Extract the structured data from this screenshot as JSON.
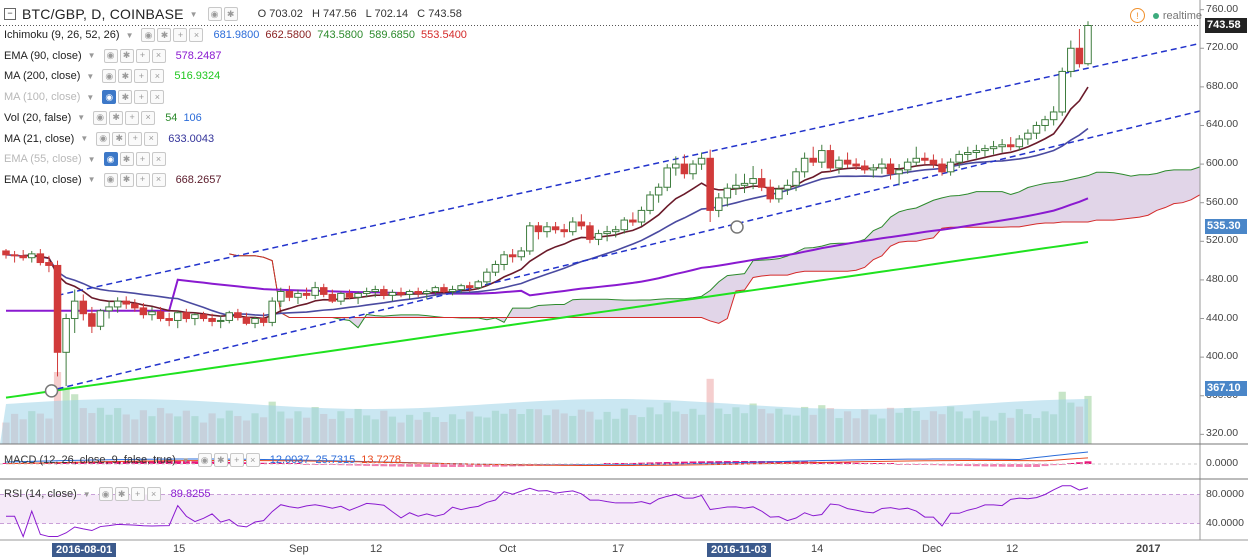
{
  "header": {
    "symbol": "BTC/GBP, D, COINBASE",
    "open_label": "O",
    "open": "703.02",
    "high_label": "H",
    "high": "747.56",
    "low_label": "L",
    "low": "702.14",
    "close_label": "C",
    "close": "743.58",
    "realtime": "realtime",
    "warn_glyph": "!"
  },
  "indicators": [
    {
      "name": "Ichimoku (9, 26, 52, 26)",
      "muted": false,
      "eye": false,
      "values": [
        {
          "v": "681.9800",
          "color": "#2b6cd9"
        },
        {
          "v": "662.5800",
          "color": "#8a2222"
        },
        {
          "v": "743.5800",
          "color": "#2c8a2c"
        },
        {
          "v": "589.6850",
          "color": "#2c8a2c"
        },
        {
          "v": "553.5400",
          "color": "#d42a2a"
        }
      ]
    },
    {
      "name": "EMA (90, close)",
      "muted": false,
      "eye": false,
      "values": [
        {
          "v": "578.2487",
          "color": "#8a1ad0"
        }
      ]
    },
    {
      "name": "MA (200, close)",
      "muted": false,
      "eye": false,
      "values": [
        {
          "v": "516.9324",
          "color": "#1fc61f"
        }
      ]
    },
    {
      "name": "MA (100, close)",
      "muted": true,
      "eye": true,
      "values": []
    },
    {
      "name": "Vol (20, false)",
      "muted": false,
      "eye": false,
      "values": [
        {
          "v": "54",
          "color": "#2c8a2c"
        },
        {
          "v": "106",
          "color": "#2b6cd9"
        }
      ]
    },
    {
      "name": "MA (21, close)",
      "muted": false,
      "eye": false,
      "values": [
        {
          "v": "633.0043",
          "color": "#33339a"
        }
      ]
    },
    {
      "name": "EMA (55, close)",
      "muted": true,
      "eye": true,
      "values": []
    },
    {
      "name": "EMA (10, close)",
      "muted": false,
      "eye": false,
      "values": [
        {
          "v": "668.2657",
          "color": "#5a1a2a"
        }
      ]
    }
  ],
  "panes": {
    "macd": {
      "name": "MACD (12, 26, close, 9, false, true)",
      "values": [
        {
          "v": "12.0037",
          "color": "#2b6cd9"
        },
        {
          "v": "25.7315",
          "color": "#2b6cd9"
        },
        {
          "v": "13.7278",
          "color": "#e8491d"
        }
      ]
    },
    "rsi": {
      "name": "RSI (14, close)",
      "values": [
        {
          "v": "89.8255",
          "color": "#8a1ad0"
        }
      ]
    }
  },
  "price_axis": {
    "ticks": [
      "760.00",
      "720.00",
      "680.00",
      "640.00",
      "600.00",
      "560.00",
      "520.00",
      "480.00",
      "440.00",
      "400.00",
      "360.00",
      "320.00"
    ],
    "labels": [
      {
        "text": "743.58",
        "value": 743.58,
        "color": "#222222"
      },
      {
        "text": "535.30",
        "value": 535.3,
        "color": "#4a86c8"
      },
      {
        "text": "367.10",
        "value": 367.1,
        "color": "#4a86c8"
      }
    ]
  },
  "macd_axis": {
    "ticks": [
      "0.0000"
    ]
  },
  "rsi_axis": {
    "ticks": [
      "80.0000",
      "40.0000"
    ]
  },
  "time_axis": [
    {
      "text": "2016-08-01",
      "style": "hi"
    },
    {
      "text": "15",
      "style": ""
    },
    {
      "text": "Sep",
      "style": ""
    },
    {
      "text": "12",
      "style": ""
    },
    {
      "text": "Oct",
      "style": ""
    },
    {
      "text": "17",
      "style": ""
    },
    {
      "text": "2016-11-03",
      "style": "hi"
    },
    {
      "text": "14",
      "style": ""
    },
    {
      "text": "Dec",
      "style": ""
    },
    {
      "text": "12",
      "style": ""
    },
    {
      "text": "2017",
      "style": "bold"
    }
  ],
  "colors": {
    "up": "#3e7c3e",
    "down": "#d13a3a",
    "ma200": "#1fe21f",
    "ema90": "#8a1ad0",
    "ma21": "#4a4aa0",
    "ema10": "#6a1a2a",
    "trend": "#2233cc",
    "cloud": "#c9b2d6",
    "senkou_a": "#2c8a2c",
    "senkou_b": "#d42a2a",
    "volume": "#9fd3e8",
    "rsi": "#8a1ad0"
  },
  "chart_data": {
    "type": "candlestick",
    "start": "2016-07-27",
    "y_range": [
      310,
      770
    ],
    "x_ticks": [
      "2016-08-01",
      "15",
      "Sep",
      "12",
      "Oct",
      "17",
      "2016-11-03",
      "14",
      "Dec",
      "12",
      "2017"
    ],
    "candles": [
      [
        510,
        512,
        502,
        506
      ],
      [
        506,
        510,
        498,
        505
      ],
      [
        505,
        511,
        500,
        503
      ],
      [
        503,
        510,
        498,
        507
      ],
      [
        507,
        512,
        495,
        498
      ],
      [
        498,
        505,
        488,
        495
      ],
      [
        495,
        500,
        380,
        405
      ],
      [
        405,
        445,
        370,
        440
      ],
      [
        440,
        470,
        425,
        458
      ],
      [
        458,
        465,
        438,
        445
      ],
      [
        445,
        452,
        425,
        432
      ],
      [
        432,
        450,
        428,
        448
      ],
      [
        448,
        458,
        440,
        452
      ],
      [
        452,
        462,
        446,
        458
      ],
      [
        458,
        463,
        450,
        455
      ],
      [
        455,
        460,
        447,
        451
      ],
      [
        451,
        456,
        440,
        444
      ],
      [
        444,
        452,
        438,
        447
      ],
      [
        447,
        452,
        437,
        440
      ],
      [
        440,
        446,
        432,
        438
      ],
      [
        438,
        448,
        430,
        446
      ],
      [
        446,
        450,
        436,
        440
      ],
      [
        440,
        446,
        433,
        444
      ],
      [
        444,
        447,
        437,
        440
      ],
      [
        440,
        445,
        432,
        437
      ],
      [
        437,
        443,
        430,
        438
      ],
      [
        438,
        448,
        435,
        446
      ],
      [
        446,
        450,
        438,
        441
      ],
      [
        441,
        446,
        433,
        435
      ],
      [
        435,
        442,
        430,
        440
      ],
      [
        440,
        446,
        432,
        436
      ],
      [
        436,
        462,
        432,
        458
      ],
      [
        458,
        472,
        452,
        468
      ],
      [
        468,
        474,
        458,
        462
      ],
      [
        462,
        470,
        455,
        466
      ],
      [
        466,
        472,
        460,
        464
      ],
      [
        464,
        478,
        460,
        472
      ],
      [
        472,
        476,
        462,
        465
      ],
      [
        465,
        470,
        456,
        458
      ],
      [
        458,
        468,
        454,
        466
      ],
      [
        466,
        470,
        460,
        462
      ],
      [
        462,
        468,
        455,
        466
      ],
      [
        466,
        472,
        462,
        468
      ],
      [
        468,
        474,
        462,
        470
      ],
      [
        470,
        474,
        460,
        464
      ],
      [
        464,
        470,
        458,
        467
      ],
      [
        467,
        472,
        462,
        465
      ],
      [
        465,
        470,
        460,
        468
      ],
      [
        468,
        472,
        462,
        466
      ],
      [
        466,
        470,
        460,
        468
      ],
      [
        468,
        474,
        464,
        472
      ],
      [
        472,
        476,
        466,
        468
      ],
      [
        468,
        474,
        464,
        470
      ],
      [
        470,
        476,
        466,
        474
      ],
      [
        474,
        478,
        468,
        472
      ],
      [
        472,
        480,
        470,
        478
      ],
      [
        478,
        492,
        474,
        488
      ],
      [
        488,
        500,
        484,
        496
      ],
      [
        496,
        510,
        490,
        506
      ],
      [
        506,
        512,
        498,
        504
      ],
      [
        504,
        514,
        500,
        510
      ],
      [
        510,
        540,
        506,
        536
      ],
      [
        536,
        540,
        522,
        530
      ],
      [
        530,
        540,
        524,
        535
      ],
      [
        535,
        540,
        528,
        532
      ],
      [
        532,
        538,
        524,
        530
      ],
      [
        530,
        545,
        526,
        540
      ],
      [
        540,
        548,
        532,
        536
      ],
      [
        536,
        540,
        518,
        522
      ],
      [
        522,
        532,
        516,
        528
      ],
      [
        528,
        536,
        520,
        530
      ],
      [
        530,
        536,
        524,
        532
      ],
      [
        532,
        545,
        528,
        542
      ],
      [
        542,
        550,
        536,
        540
      ],
      [
        540,
        556,
        536,
        552
      ],
      [
        552,
        572,
        548,
        568
      ],
      [
        568,
        580,
        560,
        576
      ],
      [
        576,
        600,
        572,
        596
      ],
      [
        596,
        608,
        588,
        600
      ],
      [
        600,
        610,
        585,
        590
      ],
      [
        590,
        604,
        584,
        600
      ],
      [
        600,
        612,
        594,
        606
      ],
      [
        606,
        615,
        540,
        552
      ],
      [
        552,
        570,
        545,
        565
      ],
      [
        565,
        580,
        556,
        575
      ],
      [
        575,
        590,
        568,
        578
      ],
      [
        578,
        590,
        570,
        580
      ],
      [
        580,
        598,
        574,
        585
      ],
      [
        585,
        595,
        572,
        576
      ],
      [
        576,
        584,
        560,
        564
      ],
      [
        564,
        578,
        560,
        574
      ],
      [
        574,
        584,
        568,
        578
      ],
      [
        578,
        596,
        572,
        592
      ],
      [
        592,
        612,
        586,
        606
      ],
      [
        606,
        618,
        598,
        602
      ],
      [
        602,
        620,
        596,
        614
      ],
      [
        614,
        620,
        592,
        596
      ],
      [
        596,
        608,
        590,
        604
      ],
      [
        604,
        612,
        596,
        600
      ],
      [
        600,
        606,
        594,
        598
      ],
      [
        598,
        604,
        590,
        594
      ],
      [
        594,
        600,
        586,
        596
      ],
      [
        596,
        606,
        590,
        600
      ],
      [
        600,
        606,
        584,
        590
      ],
      [
        590,
        600,
        578,
        594
      ],
      [
        594,
        606,
        590,
        602
      ],
      [
        602,
        618,
        598,
        606
      ],
      [
        606,
        612,
        600,
        604
      ],
      [
        604,
        610,
        596,
        600
      ],
      [
        600,
        606,
        588,
        592
      ],
      [
        592,
        606,
        588,
        602
      ],
      [
        602,
        614,
        596,
        610
      ],
      [
        610,
        618,
        604,
        612
      ],
      [
        612,
        620,
        606,
        614
      ],
      [
        614,
        620,
        608,
        616
      ],
      [
        616,
        624,
        610,
        618
      ],
      [
        618,
        626,
        612,
        620
      ],
      [
        620,
        628,
        614,
        618
      ],
      [
        618,
        630,
        614,
        626
      ],
      [
        626,
        636,
        620,
        632
      ],
      [
        632,
        644,
        626,
        640
      ],
      [
        640,
        650,
        634,
        646
      ],
      [
        646,
        660,
        640,
        654
      ],
      [
        654,
        700,
        650,
        696
      ],
      [
        696,
        728,
        690,
        720
      ],
      [
        720,
        740,
        700,
        704
      ],
      [
        704,
        748,
        702,
        743.58
      ]
    ]
  }
}
